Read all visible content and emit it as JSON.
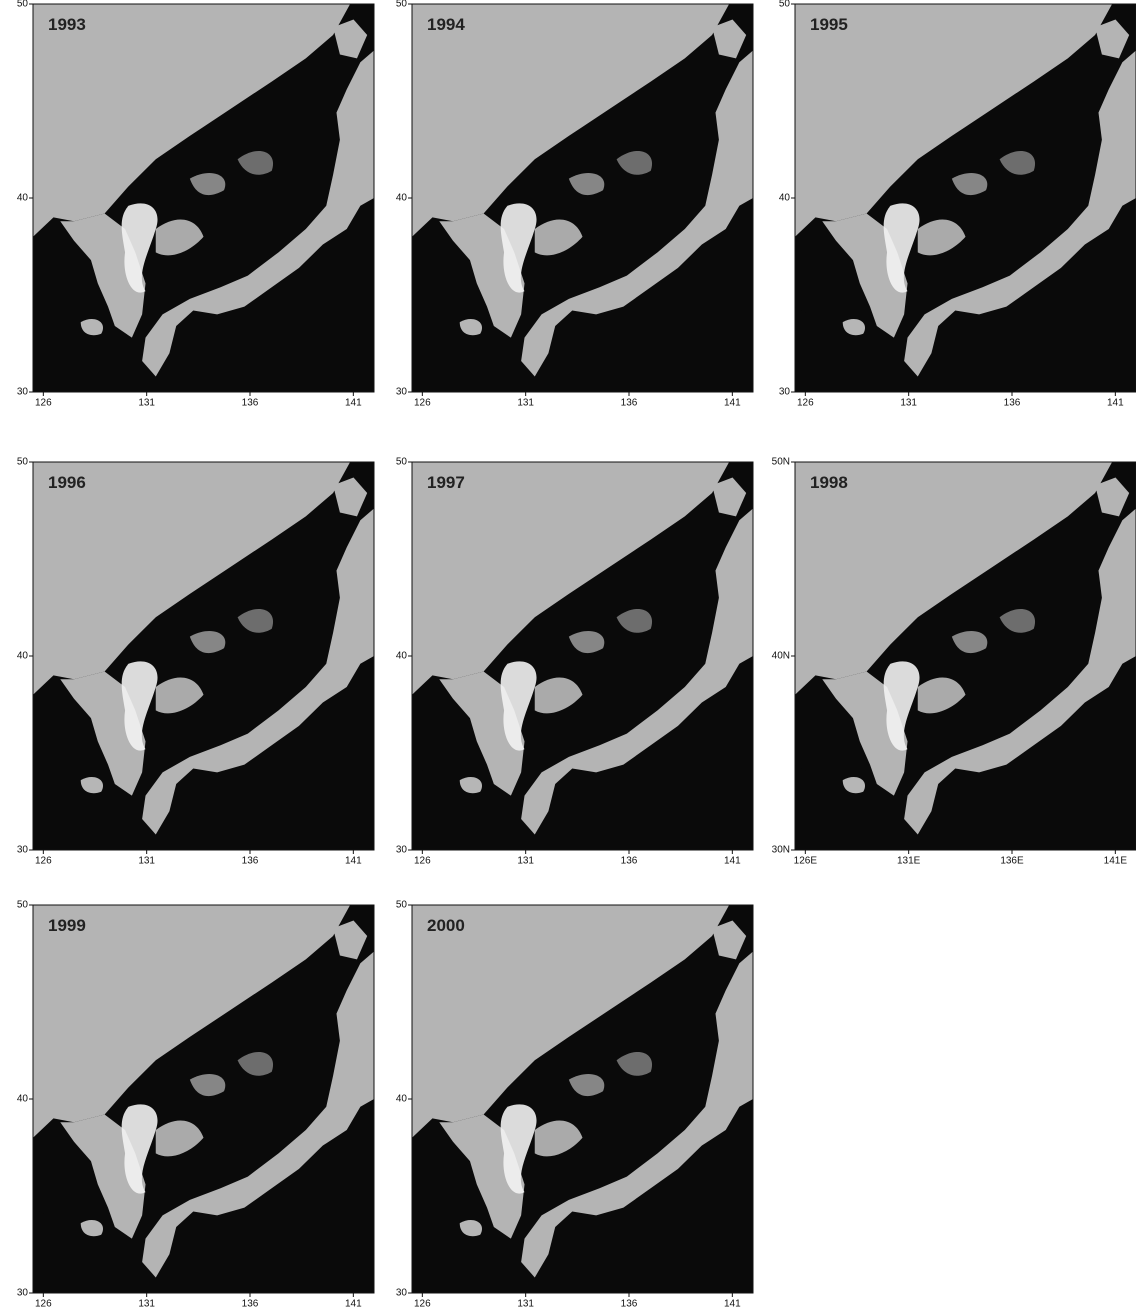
{
  "panels": [
    {
      "year": "1993",
      "xlim": [
        125.5,
        142
      ],
      "ylim": [
        30,
        50
      ],
      "xticks": [
        126,
        131,
        136,
        141
      ],
      "yticks": [
        30,
        40,
        50
      ]
    },
    {
      "year": "1994",
      "xlim": [
        125.5,
        142
      ],
      "ylim": [
        30,
        50
      ],
      "xticks": [
        126,
        131,
        136,
        141
      ],
      "yticks": [
        30,
        40,
        50
      ]
    },
    {
      "year": "1995",
      "xlim": [
        125.5,
        142
      ],
      "ylim": [
        30,
        50
      ],
      "xticks": [
        126,
        131,
        136,
        141
      ],
      "yticks": [
        30,
        40,
        50
      ]
    },
    {
      "year": "1996",
      "xlim": [
        125.5,
        142
      ],
      "ylim": [
        30,
        50
      ],
      "xticks": [
        126,
        131,
        136,
        141
      ],
      "yticks": [
        30,
        40,
        50
      ]
    },
    {
      "year": "1997",
      "xlim": [
        125.5,
        142
      ],
      "ylim": [
        30,
        50
      ],
      "xticks": [
        126,
        131,
        136,
        141
      ],
      "yticks": [
        30,
        40,
        50
      ]
    },
    {
      "year": "1998",
      "xlim": [
        125.5,
        142
      ],
      "ylim": [
        30,
        50
      ],
      "xticks": [
        {
          "value": 126,
          "label": "126E"
        },
        {
          "value": 131,
          "label": "131E"
        },
        {
          "value": 136,
          "label": "136E"
        },
        {
          "value": 141,
          "label": "141E"
        }
      ],
      "yticks": [
        {
          "value": 30,
          "label": "30N"
        },
        {
          "value": 40,
          "label": "40N"
        },
        {
          "value": 50,
          "label": "50N"
        }
      ]
    },
    {
      "year": "1999",
      "xlim": [
        125.5,
        142
      ],
      "ylim": [
        30,
        50
      ],
      "xticks": [
        126,
        131,
        136,
        141
      ],
      "yticks": [
        30,
        40,
        50
      ]
    },
    {
      "year": "2000",
      "xlim": [
        125.5,
        142
      ],
      "ylim": [
        30,
        50
      ],
      "xticks": [
        126,
        131,
        136,
        141
      ],
      "yticks": [
        30,
        40,
        50
      ]
    }
  ]
}
